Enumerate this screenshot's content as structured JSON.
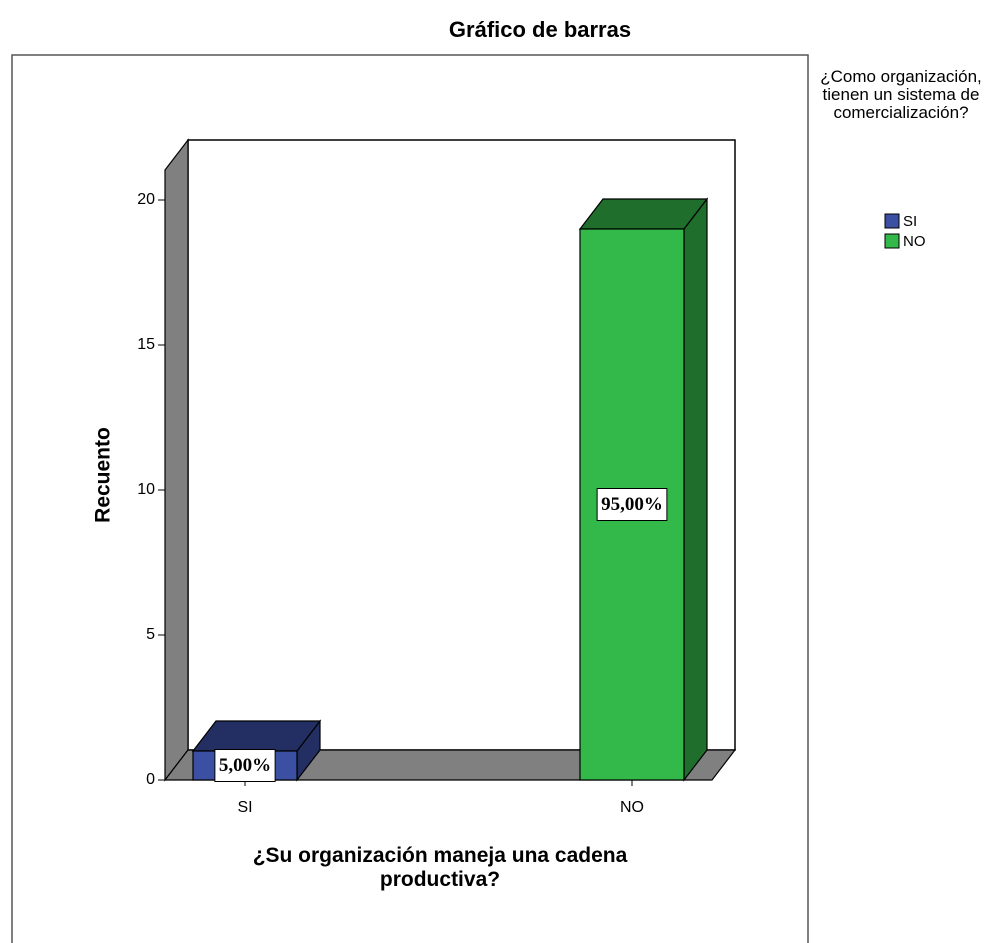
{
  "chart_data": {
    "type": "bar3d",
    "title": "Gráfico de barras",
    "x_label": "¿Su organización maneja una cadena productiva?",
    "y_label": "Recuento",
    "categories": [
      "SI",
      "NO"
    ],
    "legend_title": "¿Como organización, tienen un sistema de comercialización?",
    "series": [
      {
        "name": "SI",
        "color": "#3b4fa3",
        "values": [
          1,
          null
        ]
      },
      {
        "name": "NO",
        "color": "#33b84a",
        "values": [
          null,
          19
        ]
      }
    ],
    "data_labels": [
      {
        "value": 5,
        "label": "5,00%"
      },
      {
        "value": 95,
        "label": "95,00%"
      }
    ],
    "ylim": [
      0,
      20
    ],
    "yticks": [
      0,
      5,
      10,
      15,
      20
    ],
    "legend": "right"
  }
}
